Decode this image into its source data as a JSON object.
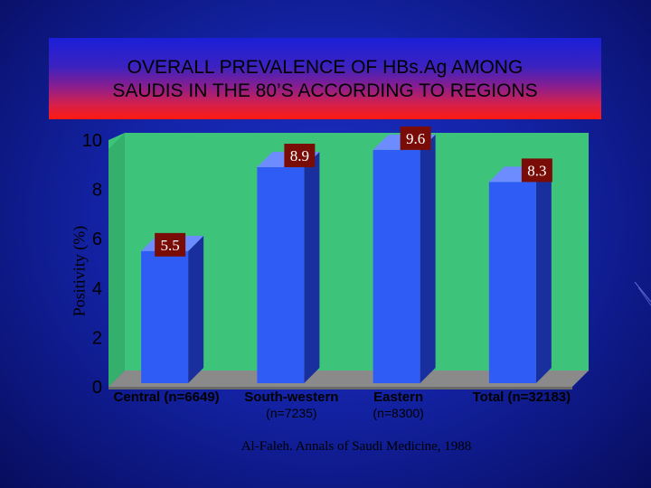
{
  "slide": {
    "title_line1": "OVERALL PREVALENCE OF HBs.Ag AMONG",
    "title_line2": "SAUDIS IN THE 80’S ACCORDING TO REGIONS",
    "source": "Al-Faleh. Annals of Saudi Medicine, 1988"
  },
  "chart_data": {
    "type": "bar",
    "title": "OVERALL PREVALENCE OF HBs.Ag AMONG SAUDIS IN THE 80’S ACCORDING TO REGIONS",
    "xlabel": "",
    "ylabel": "Positivity (%)",
    "ylim": [
      0,
      10
    ],
    "yticks": [
      "0",
      "2",
      "4",
      "6",
      "8",
      "10"
    ],
    "categories": [
      [
        "Central (n=6649)"
      ],
      [
        "South-western",
        "(n=7235)"
      ],
      [
        "Eastern",
        "(n=8300)"
      ],
      [
        "Total (n=32183)"
      ]
    ],
    "values": [
      5.5,
      8.9,
      9.6,
      8.3
    ],
    "data_labels": [
      "5.5",
      "8.9",
      "9.6",
      "8.3"
    ],
    "colors": {
      "plot_bg": "#3dc47a",
      "floor": "#8a8a8a",
      "bar_front": "#2f5cf5",
      "bar_side": "#1a2f9e",
      "bar_top": "#6c8cff",
      "label_bg": "#7a0c08",
      "label_text": "#ffffff",
      "tick_text": "#000000"
    }
  }
}
